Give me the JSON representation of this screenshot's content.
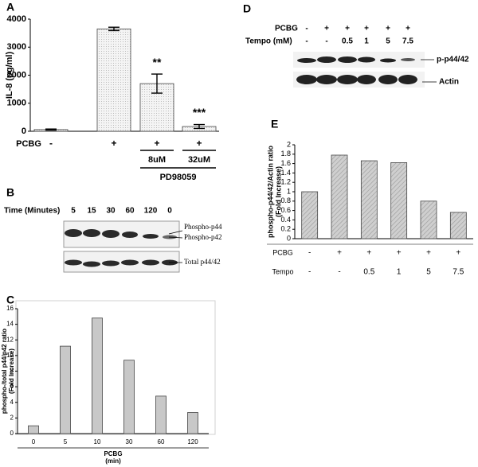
{
  "chart_data": [
    {
      "type": "bar",
      "panel": "A",
      "y_label": "IL-8 (pg/ml)",
      "category_rows": [
        {
          "name": "PCBG",
          "labels": [
            "-",
            "+",
            "+",
            "+"
          ]
        }
      ],
      "values": [
        60,
        3650,
        1700,
        170
      ],
      "errors": [
        20,
        60,
        340,
        70
      ],
      "significance": [
        null,
        null,
        "**",
        "***"
      ],
      "dose_labels": [
        null,
        null,
        "8uM",
        "32uM"
      ],
      "inhibitor": "PD98059",
      "color": "#ececec",
      "ylim": [
        0,
        4000
      ],
      "yticks": [
        0,
        1000,
        2000,
        3000,
        4000
      ]
    },
    {
      "type": "bar",
      "panel": "C",
      "y_label": [
        "phospho-/total p44/p42 ratio",
        "(Fold Increase)"
      ],
      "x_label": [
        "PCBG",
        "(min)"
      ],
      "categories": [
        "0",
        "5",
        "10",
        "30",
        "60",
        "120"
      ],
      "values": [
        1,
        11.2,
        14.8,
        9.4,
        4.8,
        2.7
      ],
      "color": "#c8c8c8",
      "ylim": [
        0,
        16
      ],
      "yticks": [
        0,
        2,
        4,
        6,
        8,
        10,
        12,
        14,
        16
      ]
    },
    {
      "type": "bar",
      "panel": "E",
      "y_label": [
        "phospho-p44/42/Actin ratio",
        "(Fold Increase)"
      ],
      "category_rows": [
        {
          "name": "PCBG",
          "labels": [
            "-",
            "+",
            "+",
            "+",
            "+",
            "+"
          ]
        },
        {
          "name": "Tempo",
          "labels": [
            "-",
            "-",
            "0.5",
            "1",
            "5",
            "7.5"
          ]
        }
      ],
      "values": [
        1,
        1.78,
        1.66,
        1.62,
        0.8,
        0.56
      ],
      "color": "#c8c8c8",
      "pattern": "hatch",
      "ylim": [
        0,
        2
      ],
      "yticks": [
        0,
        0.2,
        0.4,
        0.6,
        0.8,
        1,
        1.2,
        1.4,
        1.6,
        1.8,
        2
      ]
    }
  ],
  "blots": {
    "B": {
      "panel": "B",
      "axis_label": "Time (Minutes)",
      "lanes": [
        "5",
        "15",
        "30",
        "60",
        "120",
        "0"
      ],
      "bands": [
        "Phospho-p44",
        "Phospho-p42",
        "Total p44/42"
      ]
    },
    "D": {
      "panel": "D",
      "rows": [
        {
          "name": "PCBG",
          "lanes": [
            "-",
            "+",
            "+",
            "+",
            "+",
            "+"
          ]
        },
        {
          "name": "Tempo (mM)",
          "lanes": [
            "-",
            "-",
            "0.5",
            "1",
            "5",
            "7.5"
          ]
        }
      ],
      "bands": [
        "p-p44/42",
        "Actin"
      ]
    }
  }
}
